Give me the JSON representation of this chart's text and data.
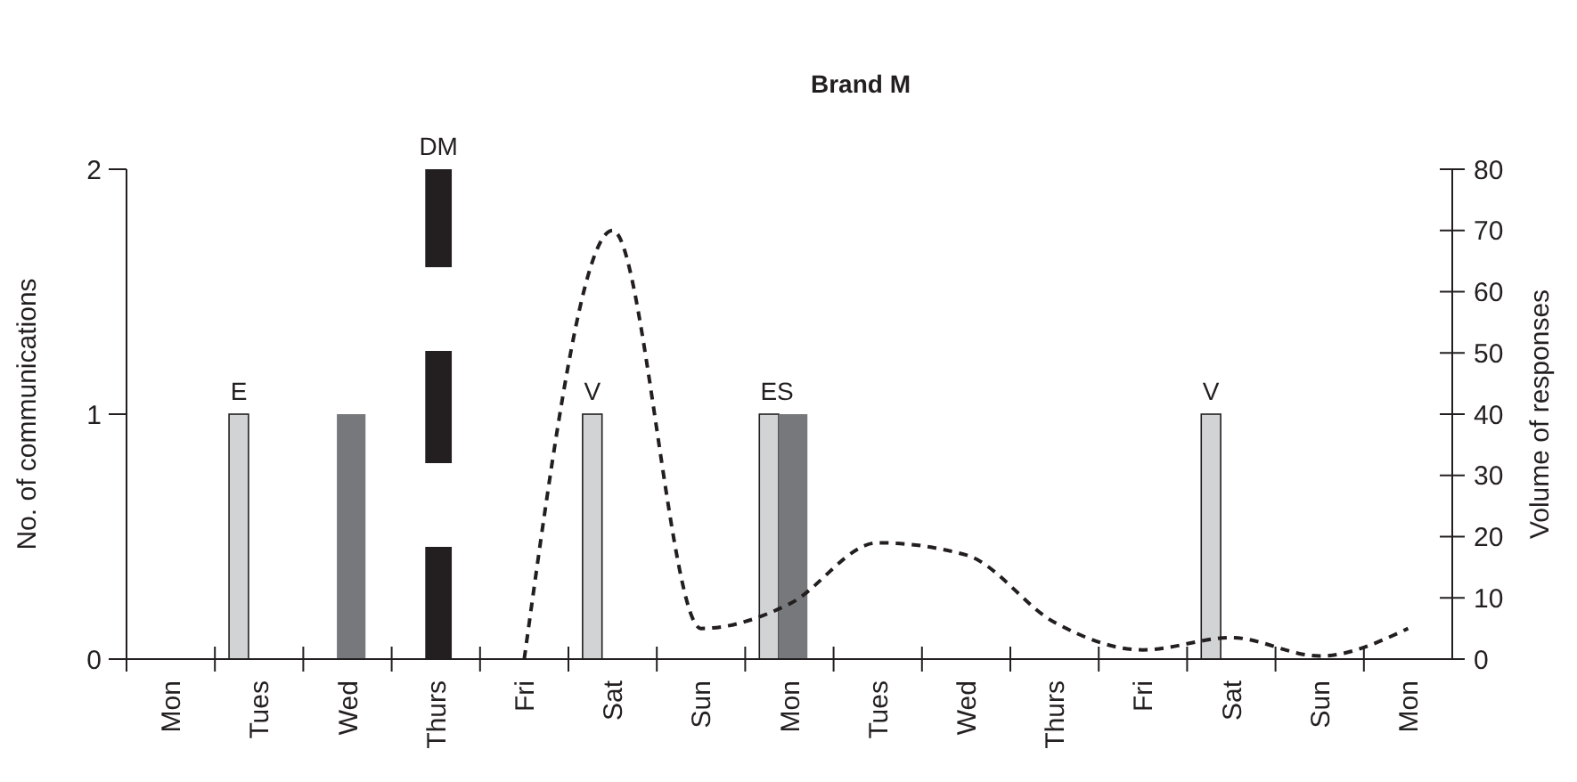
{
  "chart_data": {
    "type": "bar",
    "title": "Brand M",
    "ylabel": "No. of communications",
    "y2label": "Volume of responses",
    "categories": [
      "Mon",
      "Tues",
      "Wed",
      "Thurs",
      "Fri",
      "Sat",
      "Sun",
      "Mon",
      "Tues",
      "Wed",
      "Thurs",
      "Fri",
      "Sat",
      "Sun",
      "Mon"
    ],
    "ylim": [
      0,
      2
    ],
    "yticks": [
      0,
      1,
      2
    ],
    "y2lim": [
      0,
      80
    ],
    "y2ticks": [
      0,
      10,
      20,
      30,
      40,
      50,
      60,
      70,
      80
    ],
    "grid": false,
    "series": [
      {
        "color": "#d1d3d4",
        "values": [
          null,
          1,
          null,
          null,
          null,
          1,
          null,
          1,
          null,
          null,
          null,
          null,
          1,
          null,
          null
        ],
        "value_labels": [
          null,
          "E",
          null,
          null,
          null,
          "V",
          null,
          "ES",
          null,
          null,
          null,
          null,
          "V",
          null,
          null
        ]
      },
      {
        "color": "#77787b",
        "values": [
          null,
          null,
          1,
          null,
          null,
          null,
          null,
          1,
          null,
          null,
          null,
          null,
          null,
          null,
          null
        ]
      },
      {
        "color": "#231f20",
        "line_style": "dashed",
        "values": [
          null,
          null,
          null,
          2,
          null,
          null,
          null,
          null,
          null,
          null,
          null,
          null,
          null,
          null,
          null
        ],
        "value_labels": [
          null,
          null,
          null,
          "DM",
          null,
          null,
          null,
          null,
          null,
          null,
          null,
          null,
          null,
          null,
          null
        ]
      },
      {
        "type": "line",
        "axis": "y2",
        "color": "#231f20",
        "line_style": "dashed",
        "values": [
          null,
          null,
          null,
          null,
          0,
          70,
          5,
          9,
          19,
          17,
          6,
          1.5,
          3.5,
          0.5,
          5
        ]
      }
    ]
  }
}
